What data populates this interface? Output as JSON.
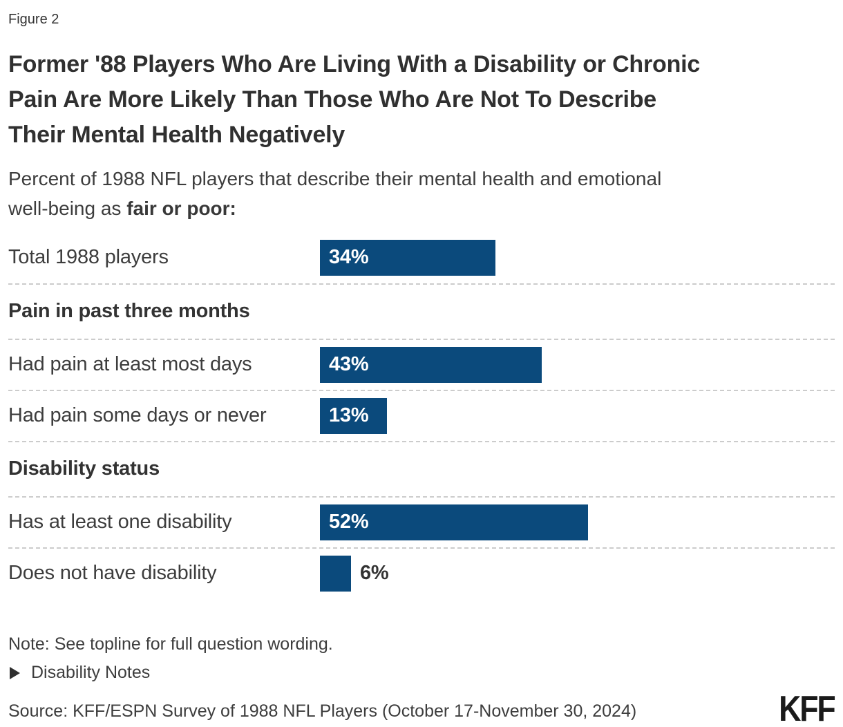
{
  "figure_label": "Figure 2",
  "chart_data": {
    "type": "bar",
    "orientation": "horizontal",
    "title": "Former '88 Players Who Are Living With a Disability or Chronic\nPain Are More Likely Than Those Who Are Not To Describe\nTheir Mental Health Negatively",
    "subtitle_text": "Percent of 1988 NFL players that describe their mental health and emotional\nwell-being as ",
    "subtitle_bold": "fair or poor:",
    "unit": "%",
    "axis": "none",
    "value_labels": "on bars",
    "bar_color": "#0b4a7c",
    "divider_color": "#cccccc",
    "rows": [
      {
        "type": "bar",
        "label": "Total 1988 players",
        "value": 34
      },
      {
        "type": "section",
        "label": "Pain in past three months"
      },
      {
        "type": "bar",
        "label": "Had pain at least most days",
        "value": 43
      },
      {
        "type": "bar",
        "label": "Had pain some days or never",
        "value": 13
      },
      {
        "type": "section",
        "label": "Disability status"
      },
      {
        "type": "bar",
        "label": "Has at least one disability",
        "value": 52
      },
      {
        "type": "bar",
        "label": "Does not have disability",
        "value": 6
      }
    ]
  },
  "footer": {
    "note": "Note: See topline for full question wording.",
    "disclosure_label": "Disability Notes",
    "source": "Source: KFF/ESPN Survey of 1988 NFL Players (October 17-November 30, 2024)",
    "logo_text": "KFF"
  }
}
